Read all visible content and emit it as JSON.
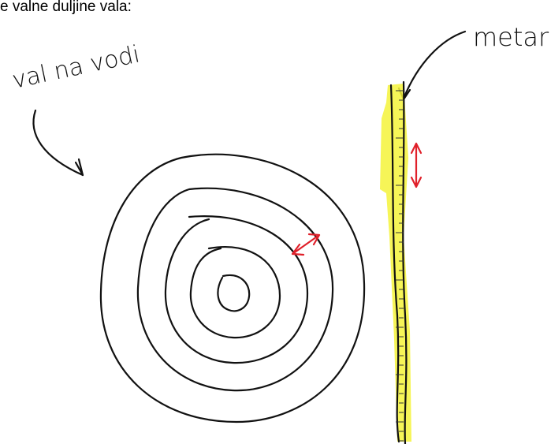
{
  "header": {
    "text": "e valne duljine vala:"
  },
  "labels": {
    "wave": "val na vodi",
    "ruler": "metar"
  }
}
